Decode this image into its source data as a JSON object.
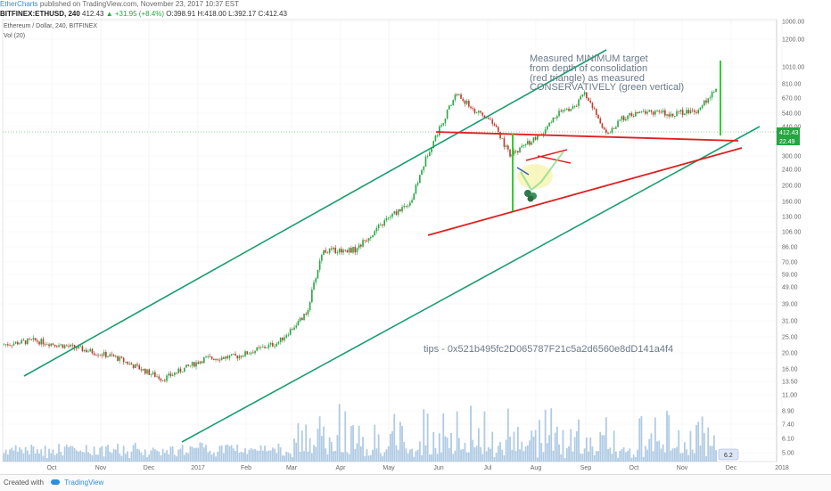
{
  "publish_info": {
    "author": "EtherCharts",
    "rest": "published on TradingView.com, November 23, 2017 10:37 EST"
  },
  "symbol_header": {
    "symbol": "BITFINEX:ETHUSD, 240",
    "last": "412.43",
    "change": "▲ +31.95 (+8.4%)",
    "ohlc": "O:398.91 H:418.00 L:392.17 C:412.43"
  },
  "chart_title": "Ethereum / Dollar, 240, BITFINEX",
  "volume_label": "Vol (20)",
  "annotations": {
    "target_lines": [
      "Measured MINIMUM target",
      "from depth of consolidation",
      "(red triangle) as measured",
      "CONSERVATIVELY (green vertical)"
    ],
    "tips": "tips - 0x521b495fc2D065787F21c5a2d6560e8dD141a4f4"
  },
  "footer": {
    "created_with": "Created with",
    "brand": "TradingView"
  },
  "colors": {
    "channel": "#1a9e6e",
    "triangle": "#e02020",
    "target": "#33cc33",
    "candle_up": "#26a641",
    "candle_down": "#c0392b",
    "volume": "#8fb5d8"
  },
  "chart_data": {
    "type": "line",
    "y_scale": "log",
    "price_labels": [
      "1000.00",
      "1200.00",
      "1010.00",
      "810.00",
      "670.00",
      "540.00",
      "440.00",
      "300.00",
      "240.00",
      "200.00",
      "160.00",
      "130.00",
      "106.00",
      "86.00",
      "70.00",
      "59.00",
      "49.00",
      "39.00",
      "31.00",
      "25.00",
      "20.00",
      "16.00",
      "13.50",
      "11.00",
      "8.90",
      "7.40",
      "6.10",
      "5.00"
    ],
    "last_price_badge": "412.43",
    "volume_badge": "22.49",
    "volume_badge_small": "6.2",
    "x_ticks": [
      "Oct",
      "Nov",
      "Dec",
      "2017",
      "Feb",
      "Mar",
      "Apr",
      "May",
      "Jun",
      "Jul",
      "Aug",
      "Sep",
      "Oct",
      "Nov",
      "Dec",
      "2018"
    ],
    "ylim": [
      5,
      1000
    ],
    "series": [
      {
        "x": [
          "2016-09-01",
          "2016-09-20",
          "2016-10-15",
          "2016-11-10",
          "2016-12-01",
          "2016-12-10",
          "2017-01-05",
          "2017-01-25",
          "2017-02-20",
          "2017-03-10",
          "2017-03-20",
          "2017-04-10",
          "2017-04-30",
          "2017-05-15",
          "2017-05-25",
          "2017-06-12",
          "2017-06-25",
          "2017-07-05",
          "2017-07-16",
          "2017-07-28",
          "2017-08-05",
          "2017-08-15",
          "2017-08-25",
          "2017-09-01",
          "2017-09-15",
          "2017-09-25",
          "2017-10-10",
          "2017-10-25",
          "2017-11-10",
          "2017-11-23"
        ],
        "y": [
          12.5,
          13.2,
          12.0,
          10.5,
          8.5,
          7.8,
          10.3,
          10.6,
          12.8,
          19.0,
          45.0,
          46.0,
          70.0,
          90.0,
          170.0,
          390.0,
          300.0,
          265.0,
          165.0,
          200.0,
          220.0,
          300.0,
          320.0,
          390.0,
          220.0,
          280.0,
          305.0,
          295.0,
          310.0,
          412.43
        ]
      }
    ]
  }
}
